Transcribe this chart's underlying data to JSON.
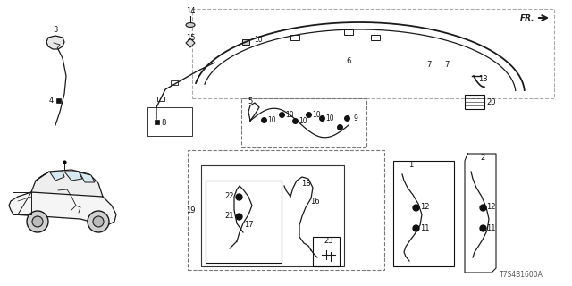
{
  "bg_color": "#ffffff",
  "part_number": "T7S4B1600A",
  "lc": "#1a1a1a",
  "gray": "#999999"
}
